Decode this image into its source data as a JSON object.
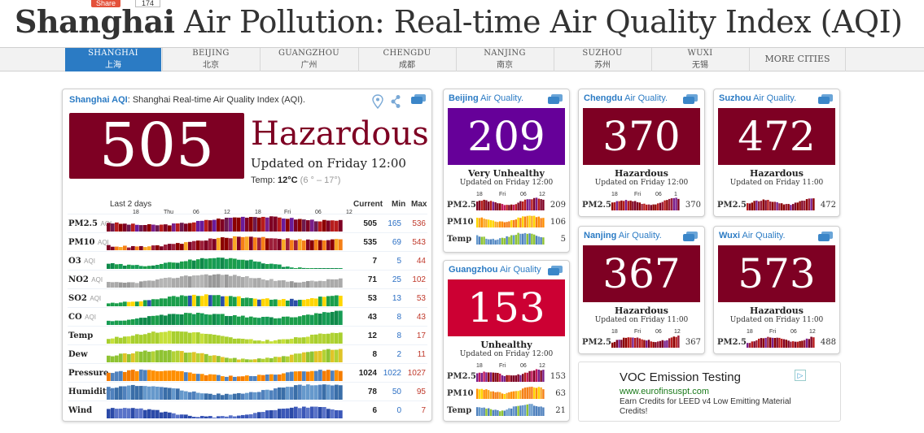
{
  "header": {
    "share_label": "Share",
    "share_count": "174",
    "title_bold": "Shanghai",
    "title_rest": " Air Pollution: Real-time Air Quality Index (AQI)"
  },
  "nav": {
    "items": [
      {
        "en": "SHANGHAI",
        "zh": "上海"
      },
      {
        "en": "BEIJING",
        "zh": "北京"
      },
      {
        "en": "GUANGZHOU",
        "zh": "广州"
      },
      {
        "en": "CHENGDU",
        "zh": "成都"
      },
      {
        "en": "NANJING",
        "zh": "南京"
      },
      {
        "en": "SUZHOU",
        "zh": "苏州"
      },
      {
        "en": "WUXI",
        "zh": "无锡"
      }
    ],
    "more": "MORE CITIES",
    "active_index": 0
  },
  "main": {
    "title_city": "Shanghai AQI",
    "title_rest": ": Shanghai Real-time Air Quality Index (AQI).",
    "aqi": "505",
    "level": "Hazardous",
    "updated": "Updated on Friday 12:00",
    "temp_label": "Temp: ",
    "temp_value": "12°C",
    "temp_range": "(6 ° – 17°)",
    "chart_header": "Last 2 days",
    "col_current": "Current",
    "col_min": "Min",
    "col_max": "Max",
    "time_ticks": [
      "18",
      "Thu",
      "06",
      "12",
      "18",
      "Fri",
      "06",
      "12"
    ],
    "rows": [
      {
        "name": "PM2.5",
        "unit": "AQI",
        "current": "505",
        "min": "165",
        "max": "536"
      },
      {
        "name": "PM10",
        "unit": "AQI",
        "current": "535",
        "min": "69",
        "max": "543"
      },
      {
        "name": "O3",
        "unit": "AQI",
        "current": "7",
        "min": "5",
        "max": "44"
      },
      {
        "name": "NO2",
        "unit": "AQI",
        "current": "71",
        "min": "25",
        "max": "102"
      },
      {
        "name": "SO2",
        "unit": "AQI",
        "current": "53",
        "min": "13",
        "max": "53"
      },
      {
        "name": "CO",
        "unit": "AQI",
        "current": "43",
        "min": "8",
        "max": "43"
      },
      {
        "name": "Temp",
        "unit": "",
        "current": "12",
        "min": "8",
        "max": "17"
      },
      {
        "name": "Dew",
        "unit": "",
        "current": "8",
        "min": "2",
        "max": "11"
      },
      {
        "name": "Pressure",
        "unit": "",
        "current": "1024",
        "min": "1022",
        "max": "1027"
      },
      {
        "name": "Humidity",
        "unit": "",
        "current": "78",
        "min": "50",
        "max": "95"
      },
      {
        "name": "Wind",
        "unit": "",
        "current": "6",
        "min": "0",
        "max": "7"
      }
    ]
  },
  "cities": [
    {
      "city": "Beijing",
      "rest": " Air Quality.",
      "aqi": "209",
      "level": "Very Unhealthy",
      "updated": "Updated on Friday 12:00",
      "color": "#660099",
      "ticks": [
        "18",
        "Fri",
        "06",
        "12"
      ],
      "rows": [
        {
          "name": "PM2.5",
          "value": "209"
        },
        {
          "name": "PM10",
          "value": "106"
        },
        {
          "name": "Temp",
          "value": "5"
        }
      ]
    },
    {
      "city": "Guangzhou",
      "rest": " Air Quality",
      "aqi": "153",
      "level": "Unhealthy",
      "updated": "Updated on Friday 12:00",
      "color": "#cc0033",
      "ticks": [
        "18",
        "Fri",
        "06",
        "12"
      ],
      "rows": [
        {
          "name": "PM2.5",
          "value": "153"
        },
        {
          "name": "PM10",
          "value": "63"
        },
        {
          "name": "Temp",
          "value": "21"
        }
      ]
    },
    {
      "city": "Chengdu",
      "rest": " Air Quality.",
      "aqi": "370",
      "level": "Hazardous",
      "updated": "Updated on Friday 12:00",
      "color": "#7e0023",
      "ticks": [
        "18",
        "Fri",
        "06",
        "1"
      ],
      "rows": [
        {
          "name": "PM2.5",
          "value": "370"
        }
      ]
    },
    {
      "city": "Suzhou",
      "rest": " Air Quality.",
      "aqi": "472",
      "level": "Hazardous",
      "updated": "Updated on Friday 11:00",
      "color": "#7e0023",
      "ticks": [],
      "rows": [
        {
          "name": "PM2.5",
          "value": "472"
        }
      ]
    },
    {
      "city": "Nanjing",
      "rest": " Air Quality.",
      "aqi": "367",
      "level": "Hazardous",
      "updated": "Updated on Friday 11:00",
      "color": "#7e0023",
      "ticks": [
        "18",
        "Fri",
        "06",
        "12"
      ],
      "rows": [
        {
          "name": "PM2.5",
          "value": "367"
        }
      ]
    },
    {
      "city": "Wuxi",
      "rest": " Air Quality.",
      "aqi": "573",
      "level": "Hazardous",
      "updated": "Updated on Friday 11:00",
      "color": "#7e0023",
      "ticks": [
        "18",
        "Fri",
        "06",
        "12"
      ],
      "rows": [
        {
          "name": "PM2.5",
          "value": "488"
        }
      ]
    }
  ],
  "ad": {
    "title": "VOC Emission Testing",
    "url": "www.eurofinsuspt.com",
    "desc": "Earn Credits for LEED v4 Low Emitting Material Credits!",
    "icon": "▷"
  },
  "colors": {
    "hazardous": "#7e0023",
    "very_unhealthy": "#660099",
    "unhealthy": "#cc0033",
    "link": "#2b7bc4"
  }
}
